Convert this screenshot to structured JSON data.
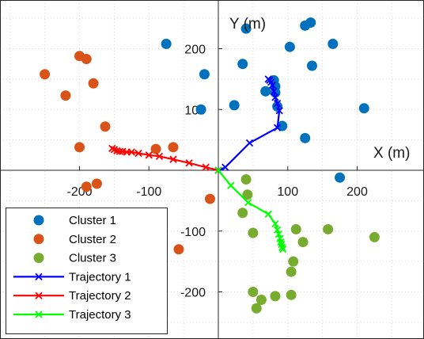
{
  "chart_data": {
    "type": "scatter",
    "xlabel": "X (m)",
    "ylabel": "Y (m)",
    "xlim": [
      -300,
      300
    ],
    "ylim": [
      -240,
      240
    ],
    "xticks": [
      -200,
      -100,
      100,
      200
    ],
    "yticks": [
      200,
      100,
      -100,
      -200
    ],
    "grid": true,
    "legend_position": "bottom-left",
    "series": [
      {
        "name": "Cluster 1",
        "kind": "scatter",
        "color": "#0072BD",
        "points": [
          [
            -75,
            208
          ],
          [
            -20,
            158
          ],
          [
            -25,
            100
          ],
          [
            40,
            233
          ],
          [
            125,
            238
          ],
          [
            133,
            243
          ],
          [
            165,
            208
          ],
          [
            103,
            203
          ],
          [
            135,
            172
          ],
          [
            35,
            175
          ],
          [
            80,
            148
          ],
          [
            82,
            138
          ],
          [
            82,
            128
          ],
          [
            68,
            130
          ],
          [
            85,
            105
          ],
          [
            23,
            107
          ],
          [
            92,
            73
          ],
          [
            125,
            53
          ],
          [
            210,
            102
          ],
          [
            175,
            -12
          ]
        ]
      },
      {
        "name": "Cluster 2",
        "kind": "scatter",
        "color": "#D95319",
        "points": [
          [
            -250,
            158
          ],
          [
            -220,
            123
          ],
          [
            -200,
            188
          ],
          [
            -190,
            183
          ],
          [
            -180,
            143
          ],
          [
            -163,
            72
          ],
          [
            -200,
            38
          ],
          [
            -190,
            -27
          ],
          [
            -175,
            -22
          ],
          [
            -65,
            38
          ],
          [
            -90,
            35
          ],
          [
            -12,
            -47
          ],
          [
            -57,
            -130
          ]
        ]
      },
      {
        "name": "Cluster 3",
        "kind": "scatter",
        "color": "#77AC30",
        "points": [
          [
            40,
            -15
          ],
          [
            42,
            -40
          ],
          [
            35,
            -70
          ],
          [
            50,
            -103
          ],
          [
            112,
            -97
          ],
          [
            122,
            -118
          ],
          [
            158,
            -97
          ],
          [
            225,
            -110
          ],
          [
            108,
            -150
          ],
          [
            105,
            -167
          ],
          [
            50,
            -200
          ],
          [
            62,
            -213
          ],
          [
            82,
            -207
          ],
          [
            55,
            -227
          ],
          [
            105,
            -205
          ]
        ]
      },
      {
        "name": "Trajectory 1",
        "kind": "line",
        "color": "#0000FF",
        "points": [
          [
            0,
            0
          ],
          [
            10,
            5
          ],
          [
            45,
            45
          ],
          [
            85,
            70
          ],
          [
            88,
            98
          ],
          [
            85,
            110
          ],
          [
            82,
            120
          ],
          [
            80,
            130
          ],
          [
            78,
            140
          ],
          [
            76,
            145
          ],
          [
            74,
            148
          ],
          [
            72,
            150
          ]
        ]
      },
      {
        "name": "Trajectory 2",
        "kind": "line",
        "color": "#FF0000",
        "points": [
          [
            0,
            0
          ],
          [
            -18,
            5
          ],
          [
            -42,
            12
          ],
          [
            -65,
            18
          ],
          [
            -85,
            23
          ],
          [
            -100,
            25
          ],
          [
            -115,
            28
          ],
          [
            -125,
            30
          ],
          [
            -132,
            30
          ],
          [
            -138,
            31
          ],
          [
            -142,
            31
          ],
          [
            -146,
            32
          ],
          [
            -150,
            34
          ],
          [
            -153,
            36
          ]
        ]
      },
      {
        "name": "Trajectory 3",
        "kind": "line",
        "color": "#00FF00",
        "points": [
          [
            0,
            0
          ],
          [
            18,
            -25
          ],
          [
            43,
            -53
          ],
          [
            72,
            -72
          ],
          [
            82,
            -88
          ],
          [
            85,
            -98
          ],
          [
            87,
            -105
          ],
          [
            89,
            -112
          ],
          [
            90,
            -118
          ],
          [
            91,
            -122
          ],
          [
            92,
            -127
          ],
          [
            93,
            -130
          ]
        ]
      }
    ]
  }
}
